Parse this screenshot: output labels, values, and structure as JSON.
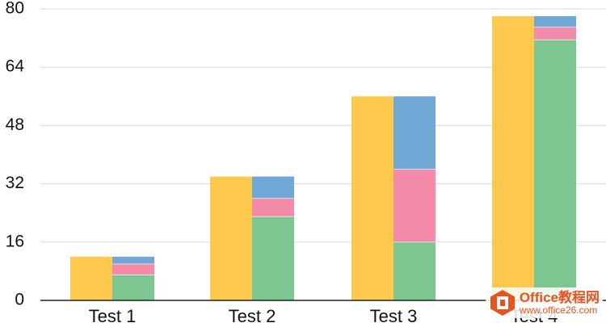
{
  "chart_data": {
    "type": "bar",
    "categories": [
      "Test 1",
      "Test 2",
      "Test 3",
      "Test 4"
    ],
    "ylim": [
      0,
      80
    ],
    "yticks": [
      0,
      16,
      32,
      48,
      64,
      80
    ],
    "grid": true,
    "series": [
      {
        "color": "#FFC94D",
        "stack": "left",
        "values": [
          12,
          34,
          56,
          78
        ]
      },
      {
        "color": "#7CC791",
        "stack": "right",
        "values": [
          7,
          23,
          16,
          71.5
        ]
      },
      {
        "color": "#F48BA9",
        "stack": "right",
        "values": [
          3,
          5,
          20,
          3.5
        ]
      },
      {
        "color": "#6FA8D6",
        "stack": "right",
        "values": [
          2,
          6,
          20,
          3
        ]
      }
    ]
  },
  "watermark": {
    "title": "Office教程网",
    "url": "www.office26.com",
    "logo_icon": "office-logo-icon"
  }
}
